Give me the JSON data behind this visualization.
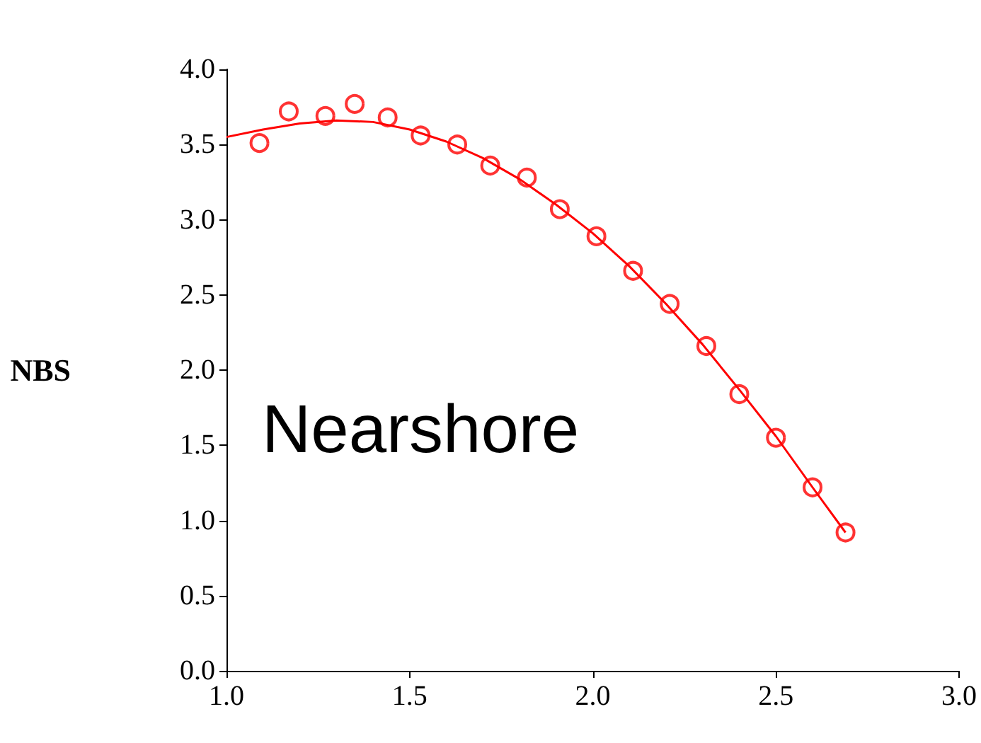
{
  "chart_data": {
    "type": "scatter",
    "ylabel": "NBS",
    "annotations": [
      "Nearshore"
    ],
    "xlim": [
      1.0,
      3.0
    ],
    "xticks": [
      {
        "value": 1.0,
        "label": "1.0"
      },
      {
        "value": 1.5,
        "label": "1.5"
      },
      {
        "value": 2.0,
        "label": "2.0"
      },
      {
        "value": 2.5,
        "label": "2.5"
      },
      {
        "value": 3.0,
        "label": "3.0"
      }
    ],
    "ylim": [
      0.0,
      4.0
    ],
    "yticks": [
      {
        "value": 0,
        "label": "0.0"
      },
      {
        "value": 0.5,
        "label": "0.5"
      },
      {
        "value": 1.0,
        "label": "1.0"
      },
      {
        "value": 1.5,
        "label": "1.5"
      },
      {
        "value": 2.0,
        "label": "2.0"
      },
      {
        "value": 2.5,
        "label": "2.5"
      },
      {
        "value": 3.0,
        "label": "3.0"
      },
      {
        "value": 3.5,
        "label": "3.5"
      },
      {
        "value": 4.0,
        "label": "4.0"
      }
    ],
    "grid": false,
    "series": [
      {
        "color": "#ff0000",
        "marker": "circle",
        "x": [
          1.09,
          1.17,
          1.27,
          1.35,
          1.44,
          1.53,
          1.63,
          1.72,
          1.82,
          1.91,
          2.01,
          2.11,
          2.21,
          2.31,
          2.4,
          2.5,
          2.6,
          2.69
        ],
        "values": [
          3.51,
          3.72,
          3.69,
          3.77,
          3.68,
          3.56,
          3.5,
          3.36,
          3.28,
          3.07,
          2.89,
          2.66,
          2.44,
          2.16,
          1.84,
          1.55,
          1.22,
          0.92
        ]
      },
      {
        "type": "line",
        "color": "#ff0000",
        "marker": "none",
        "x": [
          1.0,
          1.1,
          1.2,
          1.3,
          1.4,
          1.5,
          1.6,
          1.7,
          1.8,
          1.9,
          2.0,
          2.1,
          2.2,
          2.3,
          2.4,
          2.5,
          2.6,
          2.69
        ],
        "values": [
          3.55,
          3.6,
          3.64,
          3.66,
          3.65,
          3.6,
          3.52,
          3.41,
          3.27,
          3.1,
          2.91,
          2.69,
          2.44,
          2.17,
          1.87,
          1.56,
          1.22,
          0.92
        ]
      }
    ]
  }
}
